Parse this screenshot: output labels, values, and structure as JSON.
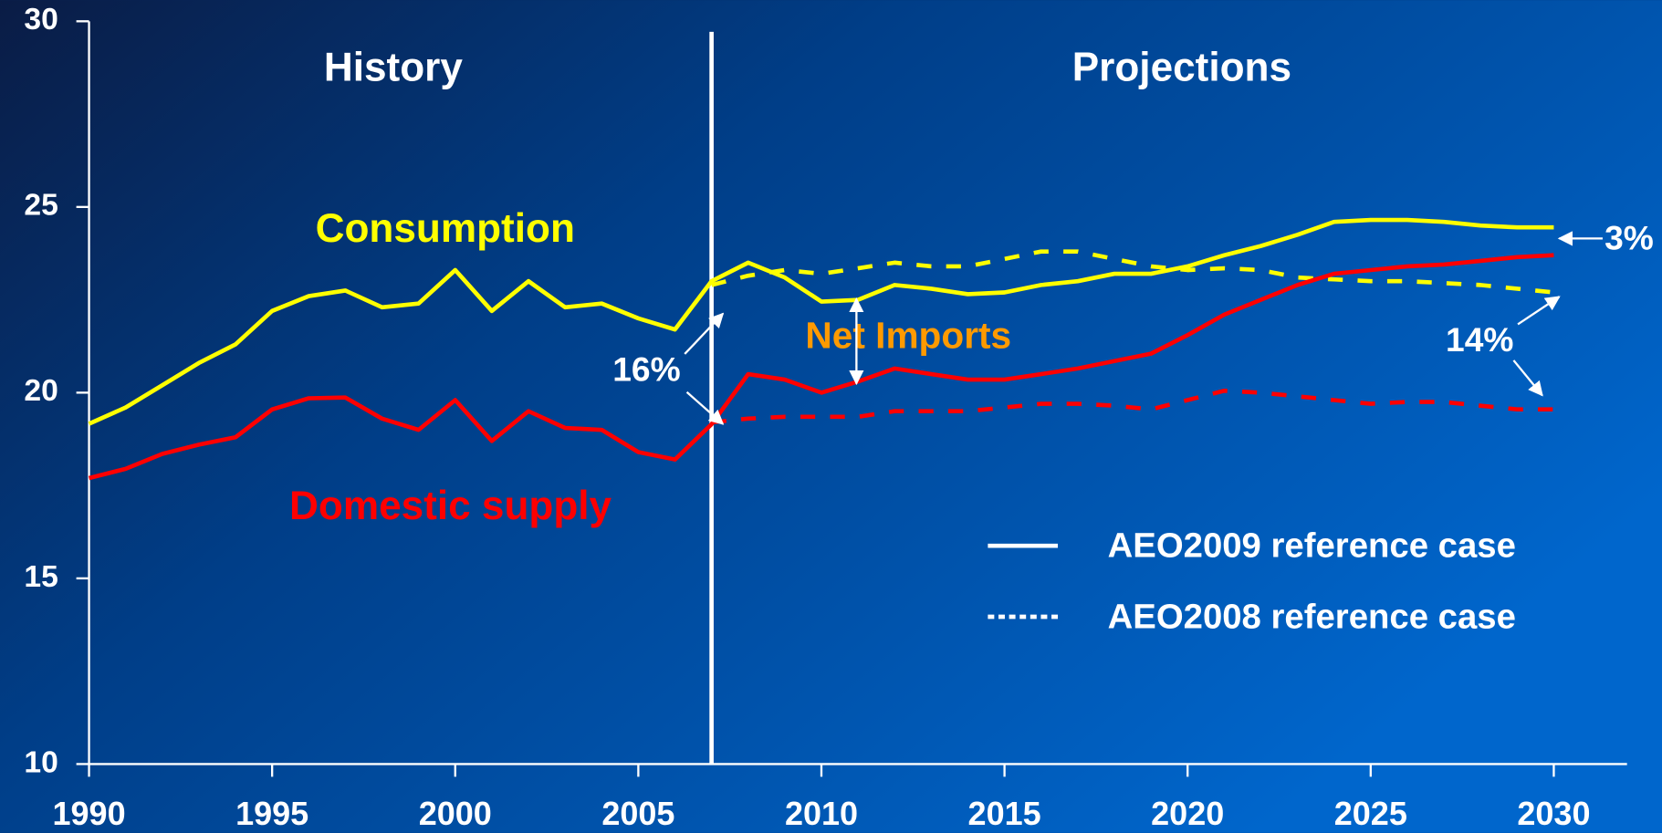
{
  "chart_data": {
    "type": "line",
    "x": [
      1990,
      1991,
      1992,
      1993,
      1994,
      1995,
      1996,
      1997,
      1998,
      1999,
      2000,
      2001,
      2002,
      2003,
      2004,
      2005,
      2006,
      2007,
      2008,
      2009,
      2010,
      2011,
      2012,
      2013,
      2014,
      2015,
      2016,
      2017,
      2018,
      2019,
      2020,
      2021,
      2022,
      2023,
      2024,
      2025,
      2026,
      2027,
      2028,
      2029,
      2030
    ],
    "series": [
      {
        "name": "Consumption",
        "color": "#ffff00",
        "cases": [
          [
            19.16,
            19.6,
            20.2,
            20.8,
            21.3,
            22.2,
            22.6,
            22.75,
            22.3,
            22.4,
            23.3,
            22.2,
            23.0,
            22.3,
            22.4,
            22.0,
            21.7,
            23.0,
            23.5,
            23.1,
            22.45,
            22.5,
            22.9,
            22.8,
            22.65,
            22.7,
            22.9,
            23.0,
            23.2,
            23.2,
            23.4,
            23.7,
            23.95,
            24.25,
            24.6,
            24.65,
            24.65,
            24.6,
            24.5,
            24.45,
            24.45
          ],
          [
            null,
            null,
            null,
            null,
            null,
            null,
            null,
            null,
            null,
            null,
            null,
            null,
            null,
            null,
            null,
            null,
            null,
            22.9,
            23.15,
            23.3,
            23.2,
            23.35,
            23.5,
            23.4,
            23.4,
            23.6,
            23.8,
            23.8,
            23.6,
            23.4,
            23.3,
            23.35,
            23.3,
            23.1,
            23.05,
            23.0,
            23.0,
            22.95,
            22.9,
            22.8,
            22.7
          ]
        ]
      },
      {
        "name": "Domestic supply",
        "color": "#ff0000",
        "cases": [
          [
            17.7,
            17.95,
            18.35,
            18.6,
            18.8,
            19.55,
            19.85,
            19.87,
            19.3,
            19.0,
            19.8,
            18.7,
            19.5,
            19.05,
            19.0,
            18.4,
            18.2,
            19.15,
            20.5,
            20.35,
            20.0,
            20.3,
            20.65,
            20.5,
            20.35,
            20.35,
            20.5,
            20.65,
            20.85,
            21.05,
            21.55,
            22.1,
            22.5,
            22.9,
            23.2,
            23.3,
            23.4,
            23.45,
            23.55,
            23.65,
            23.7
          ],
          [
            null,
            null,
            null,
            null,
            null,
            null,
            null,
            null,
            null,
            null,
            null,
            null,
            null,
            null,
            null,
            null,
            null,
            19.2,
            19.3,
            19.35,
            19.35,
            19.35,
            19.5,
            19.5,
            19.5,
            19.6,
            19.7,
            19.7,
            19.65,
            19.55,
            19.8,
            20.05,
            20.0,
            19.9,
            19.8,
            19.7,
            19.75,
            19.75,
            19.65,
            19.55,
            19.55
          ]
        ]
      }
    ],
    "legend": [
      {
        "label": "AEO2009 reference case",
        "dash": "solid"
      },
      {
        "label": "AEO2008 reference case",
        "dash": "dotted"
      }
    ],
    "legend_color": "#ffffff",
    "divider": 2007,
    "annotations": {
      "history": "History",
      "projections": "Projections",
      "net_imports": "Net Imports",
      "gap_2007": "16%",
      "gap_2030_2008": "14%",
      "gap_2030_2009": "3%"
    },
    "xlim": [
      1990,
      2032
    ],
    "xticks": [
      1990,
      1995,
      2000,
      2005,
      2010,
      2015,
      2020,
      2025,
      2030
    ],
    "ylim": [
      10,
      30
    ],
    "yticks": [
      10,
      15,
      20,
      25,
      30
    ]
  }
}
